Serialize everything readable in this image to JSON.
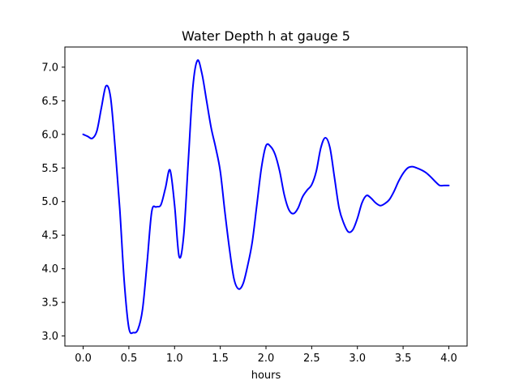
{
  "chart_data": {
    "type": "line",
    "title": "Water Depth h at gauge 5",
    "xlabel": "hours",
    "ylabel": "",
    "xlim": [
      -0.2,
      4.2
    ],
    "ylim": [
      2.85,
      7.3
    ],
    "xticks": [
      0.0,
      0.5,
      1.0,
      1.5,
      2.0,
      2.5,
      3.0,
      3.5,
      4.0
    ],
    "xtick_labels": [
      "0.0",
      "0.5",
      "1.0",
      "1.5",
      "2.0",
      "2.5",
      "3.0",
      "3.5",
      "4.0"
    ],
    "yticks": [
      3.0,
      3.5,
      4.0,
      4.5,
      5.0,
      5.5,
      6.0,
      6.5,
      7.0
    ],
    "ytick_labels": [
      "3.0",
      "3.5",
      "4.0",
      "4.5",
      "5.0",
      "5.5",
      "6.0",
      "6.5",
      "7.0"
    ],
    "grid": false,
    "line_color": "#0000ff",
    "series": [
      {
        "x": [
          0.0,
          0.05,
          0.1,
          0.15,
          0.2,
          0.25,
          0.3,
          0.35,
          0.4,
          0.45,
          0.5,
          0.55,
          0.6,
          0.65,
          0.7,
          0.75,
          0.8,
          0.85,
          0.9,
          0.95,
          1.0,
          1.05,
          1.1,
          1.15,
          1.2,
          1.25,
          1.3,
          1.35,
          1.4,
          1.45,
          1.5,
          1.55,
          1.6,
          1.65,
          1.7,
          1.75,
          1.8,
          1.85,
          1.9,
          1.95,
          2.0,
          2.05,
          2.1,
          2.15,
          2.2,
          2.25,
          2.3,
          2.35,
          2.4,
          2.45,
          2.5,
          2.55,
          2.6,
          2.65,
          2.7,
          2.75,
          2.8,
          2.85,
          2.9,
          2.95,
          3.0,
          3.05,
          3.1,
          3.15,
          3.2,
          3.25,
          3.3,
          3.35,
          3.4,
          3.45,
          3.5,
          3.55,
          3.6,
          3.65,
          3.7,
          3.75,
          3.8,
          3.85,
          3.9,
          3.95,
          4.0
        ],
        "y": [
          6.0,
          5.97,
          5.94,
          6.05,
          6.4,
          6.72,
          6.55,
          5.8,
          4.9,
          3.8,
          3.12,
          3.05,
          3.1,
          3.4,
          4.1,
          4.85,
          4.92,
          4.95,
          5.2,
          5.47,
          4.95,
          4.18,
          4.5,
          5.6,
          6.7,
          7.1,
          6.9,
          6.5,
          6.1,
          5.8,
          5.45,
          4.85,
          4.3,
          3.85,
          3.7,
          3.78,
          4.05,
          4.4,
          4.95,
          5.5,
          5.83,
          5.82,
          5.7,
          5.45,
          5.1,
          4.88,
          4.82,
          4.9,
          5.07,
          5.17,
          5.25,
          5.45,
          5.8,
          5.95,
          5.8,
          5.35,
          4.9,
          4.68,
          4.55,
          4.58,
          4.75,
          4.98,
          5.09,
          5.05,
          4.98,
          4.94,
          4.97,
          5.03,
          5.15,
          5.3,
          5.42,
          5.5,
          5.52,
          5.5,
          5.47,
          5.43,
          5.37,
          5.3,
          5.24,
          5.24,
          5.24
        ]
      }
    ]
  }
}
